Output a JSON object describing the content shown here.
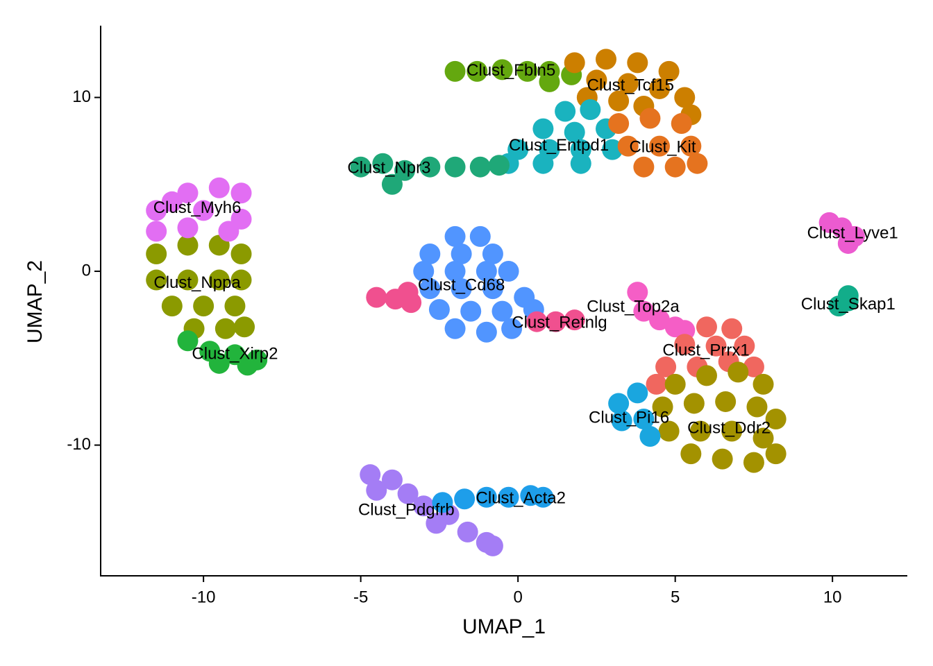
{
  "chart_data": {
    "type": "scatter",
    "x_label": "UMAP_1",
    "y_label": "UMAP_2",
    "xlim": [
      -13.27,
      12.38
    ],
    "ylim": [
      -17.52,
      14.13
    ],
    "xticks": [
      -10,
      -5,
      0,
      5,
      10
    ],
    "yticks": [
      -10,
      0,
      10
    ],
    "grid": false,
    "series": [
      {
        "name": "Clust_Nppa",
        "color": "#8B9A00",
        "x": [
          -11.5,
          -10.5,
          -9.5,
          -8.8,
          -11.5,
          -10.5,
          -9.5,
          -8.8,
          -11,
          -10,
          -9,
          -10.3,
          -9.3,
          -8.7
        ],
        "y": [
          1,
          1.5,
          1.5,
          1,
          -0.5,
          -0.5,
          -0.5,
          -0.5,
          -2,
          -2,
          -2,
          -3.3,
          -3.3,
          -3.2
        ],
        "label_x": -10.2,
        "label_y": -0.7
      },
      {
        "name": "Clust_Myh6",
        "color": "#E26EF3",
        "x": [
          -11.5,
          -10.5,
          -9.5,
          -8.8,
          -8.8,
          -10,
          -11.5,
          -10.5,
          -9.2,
          -11
        ],
        "y": [
          3.5,
          4.5,
          4.8,
          4.5,
          3,
          3.5,
          2.3,
          2.5,
          2.3,
          4
        ],
        "label_x": -10.2,
        "label_y": 3.6
      },
      {
        "name": "Clust_Xirp2",
        "color": "#22B43C",
        "x": [
          -10.5,
          -9.8,
          -9,
          -8.3,
          -9.5,
          -8.6
        ],
        "y": [
          -4,
          -4.6,
          -4.8,
          -5.1,
          -5.3,
          -5.4
        ],
        "label_x": -9,
        "label_y": -4.8
      },
      {
        "name": "Clust_Fbln5",
        "color": "#64A80F",
        "x": [
          -2,
          -1.3,
          -0.5,
          0.3,
          1,
          1.7,
          1
        ],
        "y": [
          11.5,
          11.5,
          11.6,
          11.5,
          11.5,
          11.3,
          10.9
        ],
        "label_x": -0.22,
        "label_y": 11.5
      },
      {
        "name": "Clust_Tcf15",
        "color": "#CC7F00",
        "x": [
          1.8,
          2.8,
          3.8,
          4.8,
          2.5,
          3.5,
          4.5,
          5.3,
          2.2,
          3.2,
          5.5,
          4
        ],
        "y": [
          12,
          12.2,
          12,
          11.5,
          11,
          10.8,
          10.5,
          10,
          10,
          9.8,
          9,
          9.5
        ],
        "label_x": 3.58,
        "label_y": 10.66
      },
      {
        "name": "Clust_Entpd1",
        "color": "#1AB3BF",
        "x": [
          1.5,
          2.3,
          0.8,
          1.8,
          2.8,
          0,
          1,
          2,
          3,
          -0.3,
          0.8,
          2
        ],
        "y": [
          9.2,
          9.3,
          8.2,
          8,
          8.2,
          7,
          7,
          7,
          7,
          6.2,
          6.2,
          6.2
        ],
        "label_x": 1.3,
        "label_y": 7.2
      },
      {
        "name": "Clust_Kit",
        "color": "#E5731F",
        "x": [
          3.2,
          4.2,
          5.2,
          3.5,
          4.5,
          5.5,
          4,
          5,
          5.7
        ],
        "y": [
          8.5,
          8.8,
          8.5,
          7.2,
          7.2,
          7.2,
          6,
          6,
          6.2
        ],
        "label_x": 4.6,
        "label_y": 7.1
      },
      {
        "name": "Clust_Npr3",
        "color": "#1FA878",
        "x": [
          -5,
          -4.3,
          -3.6,
          -4,
          -2.8,
          -2,
          -1.2,
          -0.6
        ],
        "y": [
          6,
          6.2,
          5.8,
          5,
          6,
          6,
          6,
          6.1
        ],
        "label_x": -4.1,
        "label_y": 5.9
      },
      {
        "name": "Clust_Cd68",
        "color": "#5195FF",
        "x": [
          -2,
          -1.2,
          -2.8,
          -1.8,
          -0.8,
          -3,
          -2,
          -1,
          -0.3,
          -2.8,
          -1.8,
          -0.8,
          0.2,
          -2.5,
          -1.5,
          -0.5,
          0.5,
          -2,
          -1,
          -0.2
        ],
        "y": [
          2,
          2,
          1,
          1,
          1,
          0,
          0,
          0,
          0,
          -1,
          -1,
          -1,
          -1.5,
          -2.2,
          -2.3,
          -2.3,
          -2.2,
          -3.3,
          -3.5,
          -3.3
        ],
        "label_x": -1.8,
        "label_y": -0.85
      },
      {
        "name": "Clust_Retnlg",
        "color": "#F0508F",
        "x": [
          0.6,
          1.2,
          1.8,
          -4.5,
          -3.9,
          -3.4,
          -3.5
        ],
        "y": [
          -2.9,
          -2.9,
          -2.8,
          -1.5,
          -1.6,
          -1.8,
          -1.2
        ],
        "label_x": 1.32,
        "label_y": -3
      },
      {
        "name": "Clust_Top2a",
        "color": "#F55EC6",
        "x": [
          3.8,
          4,
          4.5,
          5,
          5.3
        ],
        "y": [
          -1.2,
          -2.3,
          -2.8,
          -3.2,
          -3.4
        ],
        "label_x": 3.66,
        "label_y": -2.08
      },
      {
        "name": "Clust_Prrx1",
        "color": "#F0675F",
        "x": [
          6,
          6.8,
          5.3,
          6.3,
          7.2,
          4.7,
          5.7,
          6.7,
          7.5,
          4.4
        ],
        "y": [
          -3.2,
          -3.3,
          -4.2,
          -4.3,
          -4.3,
          -5.5,
          -5.5,
          -5.2,
          -5.5,
          -6.5
        ],
        "label_x": 5.98,
        "label_y": -4.6
      },
      {
        "name": "Clust_Ddr2",
        "color": "#A39200",
        "x": [
          5,
          6,
          7,
          7.8,
          4.6,
          5.6,
          6.6,
          7.6,
          8.2,
          4.8,
          5.8,
          6.8,
          7.8,
          5.5,
          6.5,
          7.5,
          8.2
        ],
        "y": [
          -6.5,
          -6,
          -5.8,
          -6.5,
          -7.8,
          -7.6,
          -7.5,
          -7.8,
          -8.5,
          -9.2,
          -9.2,
          -9.2,
          -9.6,
          -10.5,
          -10.8,
          -11,
          -10.5
        ],
        "label_x": 6.71,
        "label_y": -9.06
      },
      {
        "name": "Clust_Pi16",
        "color": "#1AA6DF",
        "x": [
          3.2,
          3.8,
          3.3,
          4,
          4.2
        ],
        "y": [
          -7.6,
          -7,
          -8.6,
          -8.5,
          -9.5
        ],
        "label_x": 3.53,
        "label_y": -8.46
      },
      {
        "name": "Clust_Lyve1",
        "color": "#EC5BD0",
        "x": [
          9.9,
          10.3,
          10.7,
          10.5
        ],
        "y": [
          2.8,
          2.5,
          2,
          1.6
        ],
        "label_x": 10.64,
        "label_y": 2.16
      },
      {
        "name": "Clust_Skap1",
        "color": "#12AD8A",
        "x": [
          10.2,
          10.5,
          10.5
        ],
        "y": [
          -2,
          -1.7,
          -1.4
        ],
        "label_x": 10.5,
        "label_y": -1.95
      },
      {
        "name": "Clust_Pdgfrb",
        "color": "#A47DF5",
        "x": [
          -4.7,
          -4,
          -4.5,
          -3.5,
          -3,
          -2.2,
          -2.6,
          -1.6,
          -1,
          -0.8
        ],
        "y": [
          -11.7,
          -12,
          -12.6,
          -12.8,
          -13.5,
          -14,
          -14.5,
          -15,
          -15.6,
          -15.8
        ],
        "label_x": -3.55,
        "label_y": -13.77
      },
      {
        "name": "Clust_Acta2",
        "color": "#1E9EEA",
        "x": [
          -2.4,
          -1.7,
          -1,
          -0.3,
          0.4,
          0.8
        ],
        "y": [
          -13.3,
          -13.1,
          -13,
          -13,
          -12.9,
          -13
        ],
        "label_x": 0.09,
        "label_y": -13.1
      }
    ]
  }
}
